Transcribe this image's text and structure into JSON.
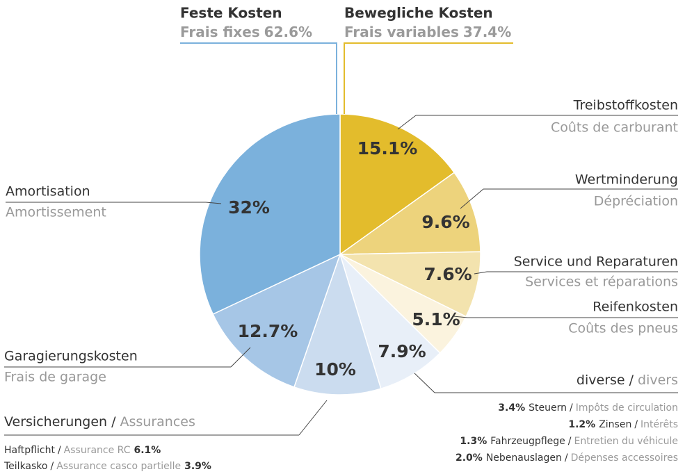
{
  "chart_data": {
    "type": "pie",
    "categories": [
      "Treibstoffkosten",
      "Wertminderung",
      "Service und Reparaturen",
      "Reifenkosten",
      "diverse",
      "Versicherungen",
      "Garagierungskosten",
      "Amortisation"
    ],
    "categories_fr": [
      "Coûts de carburant",
      "Dépréciation",
      "Services et réparations",
      "Coûts des pneus",
      "divers",
      "Assurances",
      "Frais de garage",
      "Amortissement"
    ],
    "separator": "/",
    "values": [
      15.1,
      9.6,
      7.6,
      5.1,
      7.9,
      10,
      12.7,
      32
    ],
    "value_labels": [
      "15.1%",
      "9.6%",
      "7.6%",
      "5.1%",
      "7.9%",
      "10%",
      "12.7%",
      "32%"
    ],
    "colors": [
      "#e3bc2c",
      "#edd37c",
      "#f3e3ae",
      "#fbf3de",
      "#e8eff8",
      "#cbdcef",
      "#a6c6e6",
      "#7bb1dc"
    ],
    "groups": [
      {
        "name": "Feste Kosten",
        "subtitle": "Frais fixes",
        "value": 62.6,
        "value_label": "62.6%",
        "color": "#7bb1dc"
      },
      {
        "name": "Bewegliche Kosten",
        "subtitle": "Frais variables",
        "value": 37.4,
        "value_label": "37.4%",
        "color": "#e3bc2c"
      }
    ],
    "diverse_details": [
      {
        "share": "3.4%",
        "de": "Steuern",
        "fr": "Impôts de circulation"
      },
      {
        "share": "1.2%",
        "de": "Zinsen",
        "fr": "Intérêts"
      },
      {
        "share": "1.3%",
        "de": "Fahrzeugpflege",
        "fr": "Entretien du véhicule"
      },
      {
        "share": "2.0%",
        "de": "Nebenauslagen",
        "fr": "Dépenses accessoires"
      }
    ],
    "insurance_details": [
      {
        "de": "Haftpflicht",
        "fr": "Assurance RC",
        "share": "6.1%"
      },
      {
        "de": "Teilkasko",
        "fr": "Assurance casco partielle",
        "share": "3.9%"
      }
    ]
  }
}
